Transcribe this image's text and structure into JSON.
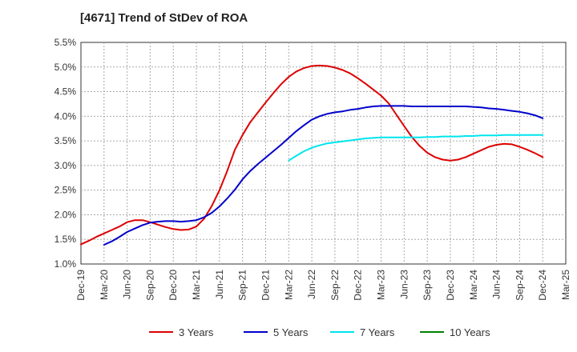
{
  "chart_data": {
    "type": "line",
    "title": "[4671]  Trend of StDev of ROA",
    "xlabel": "",
    "ylabel": "",
    "x_ticks": [
      "Dec-19",
      "Mar-20",
      "Jun-20",
      "Sep-20",
      "Dec-20",
      "Mar-21",
      "Jun-21",
      "Sep-21",
      "Dec-21",
      "Mar-22",
      "Jun-22",
      "Sep-22",
      "Dec-22",
      "Mar-23",
      "Jun-23",
      "Sep-23",
      "Dec-23",
      "Mar-24",
      "Jun-24",
      "Sep-24",
      "Dec-24",
      "Mar-25"
    ],
    "y_ticks": [
      "1.0%",
      "1.5%",
      "2.0%",
      "2.5%",
      "3.0%",
      "3.5%",
      "4.0%",
      "4.5%",
      "5.0%",
      "5.5%"
    ],
    "ylim": [
      1.0,
      5.5
    ],
    "grid": true,
    "legend_position": "bottom",
    "series": [
      {
        "name": "3 Years",
        "color": "#dd0000",
        "points": [
          [
            "Dec-19",
            1.4
          ],
          [
            "Jan-20",
            1.47
          ],
          [
            "Feb-20",
            1.55
          ],
          [
            "Mar-20",
            1.62
          ],
          [
            "Apr-20",
            1.69
          ],
          [
            "May-20",
            1.76
          ],
          [
            "Jun-20",
            1.85
          ],
          [
            "Jul-20",
            1.89
          ],
          [
            "Aug-20",
            1.89
          ],
          [
            "Sep-20",
            1.85
          ],
          [
            "Oct-20",
            1.8
          ],
          [
            "Nov-20",
            1.75
          ],
          [
            "Dec-20",
            1.71
          ],
          [
            "Jan-21",
            1.69
          ],
          [
            "Feb-21",
            1.7
          ],
          [
            "Mar-21",
            1.76
          ],
          [
            "Apr-21",
            1.92
          ],
          [
            "May-21",
            2.18
          ],
          [
            "Jun-21",
            2.5
          ],
          [
            "Jul-21",
            2.89
          ],
          [
            "Aug-21",
            3.32
          ],
          [
            "Sep-21",
            3.62
          ],
          [
            "Oct-21",
            3.88
          ],
          [
            "Nov-21",
            4.08
          ],
          [
            "Dec-21",
            4.28
          ],
          [
            "Jan-22",
            4.47
          ],
          [
            "Feb-22",
            4.65
          ],
          [
            "Mar-22",
            4.8
          ],
          [
            "Apr-22",
            4.91
          ],
          [
            "May-22",
            4.98
          ],
          [
            "Jun-22",
            5.02
          ],
          [
            "Jul-22",
            5.03
          ],
          [
            "Aug-22",
            5.02
          ],
          [
            "Sep-22",
            4.99
          ],
          [
            "Oct-22",
            4.94
          ],
          [
            "Nov-22",
            4.87
          ],
          [
            "Dec-22",
            4.77
          ],
          [
            "Jan-23",
            4.66
          ],
          [
            "Feb-23",
            4.54
          ],
          [
            "Mar-23",
            4.42
          ],
          [
            "Apr-23",
            4.26
          ],
          [
            "May-23",
            4.03
          ],
          [
            "Jun-23",
            3.8
          ],
          [
            "Jul-23",
            3.58
          ],
          [
            "Aug-23",
            3.4
          ],
          [
            "Sep-23",
            3.26
          ],
          [
            "Oct-23",
            3.17
          ],
          [
            "Nov-23",
            3.12
          ],
          [
            "Dec-23",
            3.1
          ],
          [
            "Jan-24",
            3.12
          ],
          [
            "Feb-24",
            3.17
          ],
          [
            "Mar-24",
            3.24
          ],
          [
            "Apr-24",
            3.31
          ],
          [
            "May-24",
            3.38
          ],
          [
            "Jun-24",
            3.42
          ],
          [
            "Jul-24",
            3.44
          ],
          [
            "Aug-24",
            3.43
          ],
          [
            "Sep-24",
            3.38
          ],
          [
            "Oct-24",
            3.32
          ],
          [
            "Nov-24",
            3.25
          ],
          [
            "Dec-24",
            3.17
          ]
        ]
      },
      {
        "name": "5 Years",
        "color": "#0000cc",
        "points": [
          [
            "Mar-20",
            1.39
          ],
          [
            "Apr-20",
            1.46
          ],
          [
            "May-20",
            1.55
          ],
          [
            "Jun-20",
            1.65
          ],
          [
            "Jul-20",
            1.72
          ],
          [
            "Aug-20",
            1.79
          ],
          [
            "Sep-20",
            1.84
          ],
          [
            "Oct-20",
            1.86
          ],
          [
            "Nov-20",
            1.87
          ],
          [
            "Dec-20",
            1.87
          ],
          [
            "Jan-21",
            1.86
          ],
          [
            "Feb-21",
            1.87
          ],
          [
            "Mar-21",
            1.89
          ],
          [
            "Apr-21",
            1.95
          ],
          [
            "May-21",
            2.04
          ],
          [
            "Jun-21",
            2.17
          ],
          [
            "Jul-21",
            2.33
          ],
          [
            "Aug-21",
            2.51
          ],
          [
            "Sep-21",
            2.72
          ],
          [
            "Oct-21",
            2.89
          ],
          [
            "Nov-21",
            3.03
          ],
          [
            "Dec-21",
            3.16
          ],
          [
            "Jan-22",
            3.29
          ],
          [
            "Feb-22",
            3.42
          ],
          [
            "Mar-22",
            3.56
          ],
          [
            "Apr-22",
            3.7
          ],
          [
            "May-22",
            3.82
          ],
          [
            "Jun-22",
            3.93
          ],
          [
            "Jul-22",
            4.0
          ],
          [
            "Aug-22",
            4.05
          ],
          [
            "Sep-22",
            4.08
          ],
          [
            "Oct-22",
            4.1
          ],
          [
            "Nov-22",
            4.13
          ],
          [
            "Dec-22",
            4.15
          ],
          [
            "Jan-23",
            4.18
          ],
          [
            "Feb-23",
            4.2
          ],
          [
            "Mar-23",
            4.21
          ],
          [
            "Apr-23",
            4.21
          ],
          [
            "May-23",
            4.21
          ],
          [
            "Jun-23",
            4.21
          ],
          [
            "Jul-23",
            4.2
          ],
          [
            "Aug-23",
            4.2
          ],
          [
            "Sep-23",
            4.2
          ],
          [
            "Oct-23",
            4.2
          ],
          [
            "Nov-23",
            4.2
          ],
          [
            "Dec-23",
            4.2
          ],
          [
            "Jan-24",
            4.2
          ],
          [
            "Feb-24",
            4.2
          ],
          [
            "Mar-24",
            4.19
          ],
          [
            "Apr-24",
            4.18
          ],
          [
            "May-24",
            4.16
          ],
          [
            "Jun-24",
            4.15
          ],
          [
            "Jul-24",
            4.13
          ],
          [
            "Aug-24",
            4.11
          ],
          [
            "Sep-24",
            4.09
          ],
          [
            "Oct-24",
            4.06
          ],
          [
            "Nov-24",
            4.02
          ],
          [
            "Dec-24",
            3.96
          ]
        ]
      },
      {
        "name": "7 Years",
        "color": "#00e5ee",
        "points": [
          [
            "Mar-22",
            3.1
          ],
          [
            "Apr-22",
            3.2
          ],
          [
            "May-22",
            3.29
          ],
          [
            "Jun-22",
            3.36
          ],
          [
            "Jul-22",
            3.41
          ],
          [
            "Aug-22",
            3.45
          ],
          [
            "Sep-22",
            3.47
          ],
          [
            "Oct-22",
            3.49
          ],
          [
            "Nov-22",
            3.51
          ],
          [
            "Dec-22",
            3.53
          ],
          [
            "Jan-23",
            3.55
          ],
          [
            "Feb-23",
            3.56
          ],
          [
            "Mar-23",
            3.57
          ],
          [
            "Apr-23",
            3.57
          ],
          [
            "May-23",
            3.57
          ],
          [
            "Jun-23",
            3.57
          ],
          [
            "Jul-23",
            3.57
          ],
          [
            "Aug-23",
            3.57
          ],
          [
            "Sep-23",
            3.58
          ],
          [
            "Oct-23",
            3.58
          ],
          [
            "Nov-23",
            3.59
          ],
          [
            "Dec-23",
            3.59
          ],
          [
            "Jan-24",
            3.59
          ],
          [
            "Feb-24",
            3.6
          ],
          [
            "Mar-24",
            3.6
          ],
          [
            "Apr-24",
            3.61
          ],
          [
            "May-24",
            3.61
          ],
          [
            "Jun-24",
            3.61
          ],
          [
            "Jul-24",
            3.62
          ],
          [
            "Aug-24",
            3.62
          ],
          [
            "Sep-24",
            3.62
          ],
          [
            "Oct-24",
            3.62
          ],
          [
            "Nov-24",
            3.62
          ],
          [
            "Dec-24",
            3.62
          ]
        ]
      },
      {
        "name": "10 Years",
        "color": "#008000",
        "points": []
      }
    ]
  }
}
